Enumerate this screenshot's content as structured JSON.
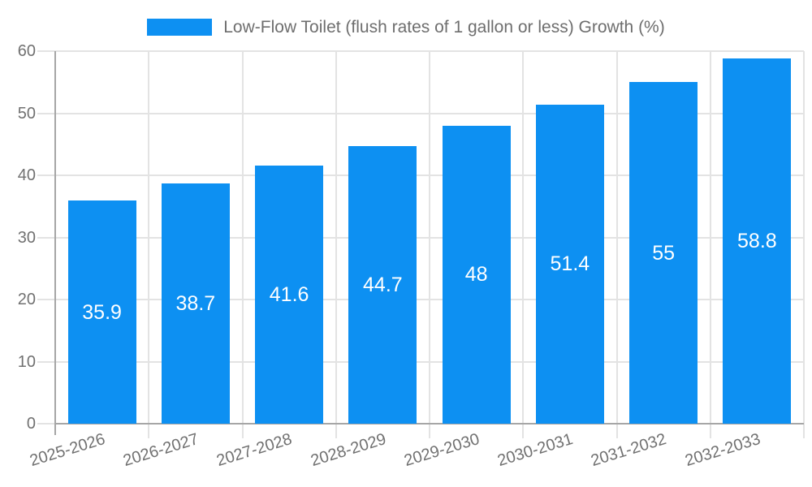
{
  "chart_data": {
    "type": "bar",
    "legend_label": "Low-Flow Toilet (flush rates of 1 gallon or less) Growth (%)",
    "categories": [
      "2025-2026",
      "2026-2027",
      "2027-2028",
      "2028-2029",
      "2029-2030",
      "2030-2031",
      "2031-2032",
      "2032-2033"
    ],
    "values": [
      35.9,
      38.7,
      41.6,
      44.7,
      48,
      51.4,
      55,
      58.8
    ],
    "title": "",
    "xlabel": "",
    "ylabel": "",
    "ylim": [
      0,
      60
    ],
    "yticks": [
      0,
      10,
      20,
      30,
      40,
      50,
      60
    ],
    "grid": true,
    "legend_position": "top-center",
    "bar_value_labels": "inside-center",
    "x_label_rotation_deg": -17,
    "colors": {
      "bar": "#0d90f2",
      "grid": "#e3e3e3",
      "axis": "#a6a6a6",
      "tick_text": "#717171",
      "legend_text": "#6e6e6e",
      "value_label": "#ffffff",
      "background": "#ffffff"
    }
  }
}
